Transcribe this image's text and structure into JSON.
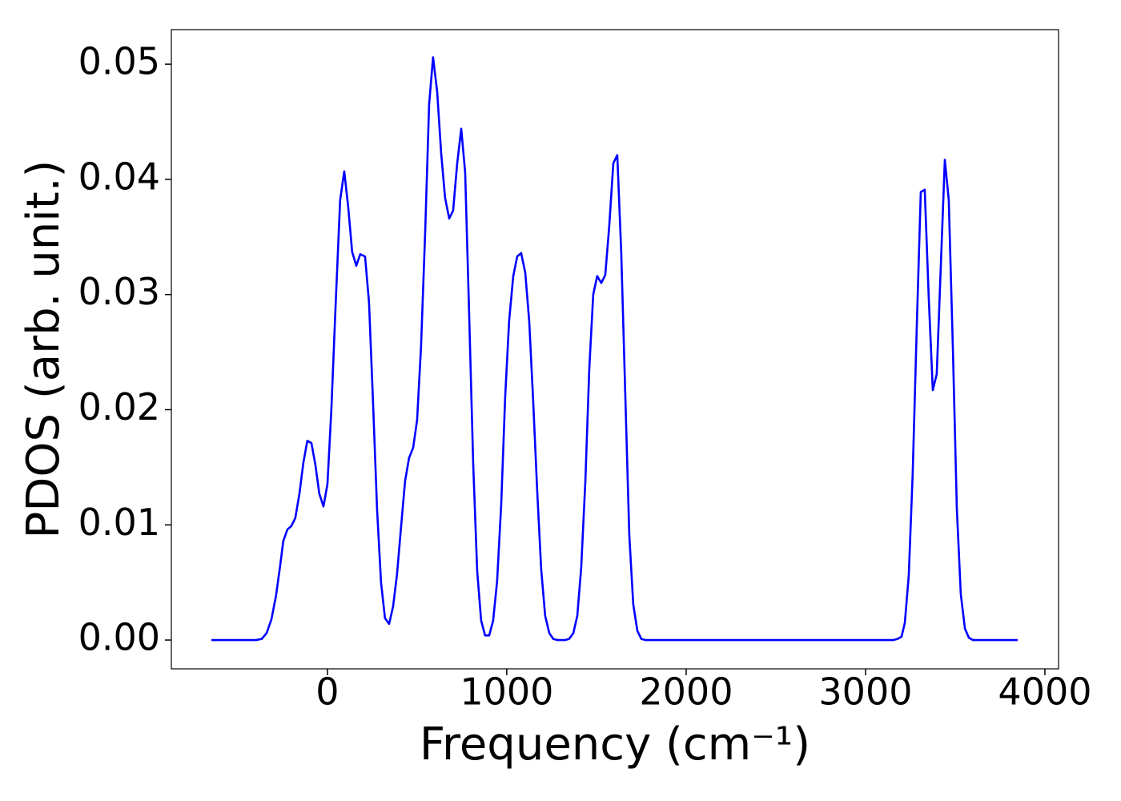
{
  "chart_data": {
    "type": "line",
    "x_label": "Frequency (cm⁻¹)",
    "y_label": "PDOS (arb. unit.)",
    "color": "#0000ff",
    "x": [
      -647,
      -397,
      -366,
      -339,
      -312,
      -286,
      -263,
      -246,
      -223,
      -201,
      -179,
      -156,
      -134,
      -112,
      -89,
      -67,
      -45,
      -22,
      0,
      22,
      45,
      71,
      94,
      116,
      138,
      161,
      183,
      210,
      232,
      254,
      277,
      299,
      321,
      344,
      366,
      388,
      411,
      433,
      455,
      478,
      500,
      522,
      545,
      567,
      589,
      612,
      634,
      656,
      679,
      701,
      723,
      746,
      768,
      790,
      813,
      835,
      857,
      879,
      902,
      924,
      946,
      969,
      991,
      1013,
      1036,
      1058,
      1080,
      1103,
      1125,
      1147,
      1170,
      1192,
      1214,
      1237,
      1259,
      1281,
      1326,
      1348,
      1371,
      1393,
      1415,
      1438,
      1460,
      1482,
      1504,
      1527,
      1549,
      1571,
      1594,
      1616,
      1638,
      1661,
      1683,
      1705,
      1728,
      1750,
      1772,
      3156,
      3179,
      3201,
      3219,
      3241,
      3263,
      3286,
      3308,
      3330,
      3353,
      3375,
      3397,
      3420,
      3442,
      3464,
      3487,
      3509,
      3531,
      3554,
      3576,
      3598,
      3848
    ],
    "values": [
      0,
      0,
      0.0001,
      0.0006,
      0.0018,
      0.0039,
      0.0065,
      0.0086,
      0.0096,
      0.0099,
      0.0106,
      0.0127,
      0.0154,
      0.0173,
      0.0171,
      0.0152,
      0.0127,
      0.0116,
      0.0135,
      0.02,
      0.0288,
      0.0382,
      0.0407,
      0.0376,
      0.0337,
      0.0325,
      0.0335,
      0.0333,
      0.0293,
      0.0208,
      0.0113,
      0.005,
      0.0019,
      0.0014,
      0.0029,
      0.0057,
      0.0099,
      0.0138,
      0.0158,
      0.0167,
      0.0191,
      0.0255,
      0.0354,
      0.0465,
      0.0506,
      0.0476,
      0.0423,
      0.0384,
      0.0366,
      0.0373,
      0.0413,
      0.0444,
      0.0406,
      0.0284,
      0.0152,
      0.006,
      0.0017,
      0.0004,
      0.0004,
      0.0017,
      0.0051,
      0.0118,
      0.0211,
      0.0277,
      0.0316,
      0.0333,
      0.0336,
      0.0319,
      0.0277,
      0.0208,
      0.0128,
      0.0061,
      0.0021,
      0.0006,
      0.0001,
      0,
      0,
      0.0001,
      0.0006,
      0.0021,
      0.0063,
      0.0138,
      0.0236,
      0.03,
      0.0316,
      0.031,
      0.0317,
      0.0359,
      0.0414,
      0.0421,
      0.0337,
      0.0211,
      0.0091,
      0.0031,
      0.0008,
      0.0001,
      0,
      0,
      0.0001,
      0.0003,
      0.0015,
      0.0056,
      0.0145,
      0.0274,
      0.0389,
      0.0391,
      0.0295,
      0.0217,
      0.0231,
      0.0326,
      0.0417,
      0.0382,
      0.0253,
      0.0114,
      0.004,
      0.001,
      0.0002,
      0,
      0
    ],
    "xlim": [
      -870,
      4076
    ],
    "ylim": [
      -0.0025,
      0.053
    ],
    "xticks": [
      0,
      1000,
      2000,
      3000,
      4000
    ],
    "yticks": [
      {
        "value": 0,
        "label": "0.00"
      },
      0.01,
      0.02,
      0.03,
      0.04,
      0.05
    ],
    "grid": false
  }
}
